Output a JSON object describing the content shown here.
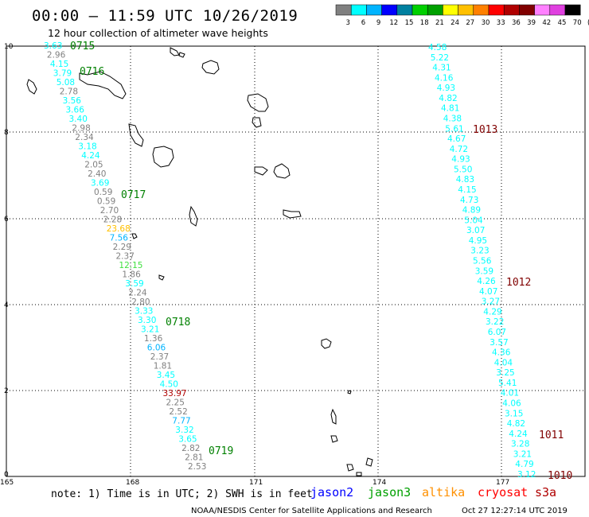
{
  "header": {
    "title": "00:00 – 11:59 UTC 10/26/2019",
    "subtitle": "12 hour collection of altimeter wave heights"
  },
  "colorbar": {
    "colors": [
      "#808080",
      "#00ffff",
      "#00b4ff",
      "#0000ff",
      "#0080a0",
      "#00d000",
      "#00a000",
      "#ffff00",
      "#ffc000",
      "#ff8000",
      "#ff0000",
      "#b00000",
      "#800000",
      "#ff80ff",
      "#e040e0",
      "#000000"
    ],
    "labels": [
      "3",
      "6",
      "9",
      "12",
      "15",
      "18",
      "21",
      "24",
      "27",
      "30",
      "33",
      "36",
      "39",
      "42",
      "45",
      "70",
      "(ft)"
    ]
  },
  "axes": {
    "x_ticks": [
      "165",
      "168",
      "171",
      "174",
      "177"
    ],
    "y_ticks": [
      "0",
      "2",
      "4",
      "6",
      "8",
      "10"
    ]
  },
  "track_left": [
    {
      "t": "3.63",
      "c": "#00ffff"
    },
    {
      "t": "2.96",
      "c": "#808080"
    },
    {
      "t": "4.15",
      "c": "#00ffff"
    },
    {
      "t": "3.79",
      "c": "#00ffff"
    },
    {
      "t": "5.08",
      "c": "#00ffff"
    },
    {
      "t": "2.78",
      "c": "#808080"
    },
    {
      "t": "3.56",
      "c": "#00ffff"
    },
    {
      "t": "3.66",
      "c": "#00ffff"
    },
    {
      "t": "3.40",
      "c": "#00ffff"
    },
    {
      "t": "2.98",
      "c": "#808080"
    },
    {
      "t": "2.34",
      "c": "#808080"
    },
    {
      "t": "3.18",
      "c": "#00ffff"
    },
    {
      "t": "4.24",
      "c": "#00ffff"
    },
    {
      "t": "2.05",
      "c": "#808080"
    },
    {
      "t": "2.40",
      "c": "#808080"
    },
    {
      "t": "3.69",
      "c": "#00ffff"
    },
    {
      "t": "0.59",
      "c": "#808080"
    },
    {
      "t": "0.59",
      "c": "#808080"
    },
    {
      "t": "2.70",
      "c": "#808080"
    },
    {
      "t": "2.28",
      "c": "#808080"
    },
    {
      "t": "23.68",
      "c": "#ffc000"
    },
    {
      "t": "7.56",
      "c": "#00b4ff"
    },
    {
      "t": "2.29",
      "c": "#808080"
    },
    {
      "t": "2.37",
      "c": "#808080"
    },
    {
      "t": "12.15",
      "c": "#40e040"
    },
    {
      "t": "1.86",
      "c": "#808080"
    },
    {
      "t": "3.59",
      "c": "#00ffff"
    },
    {
      "t": "2.24",
      "c": "#808080"
    },
    {
      "t": "2.80",
      "c": "#808080"
    },
    {
      "t": "3.33",
      "c": "#00ffff"
    },
    {
      "t": "3.30",
      "c": "#00ffff"
    },
    {
      "t": "3.21",
      "c": "#00ffff"
    },
    {
      "t": "1.36",
      "c": "#808080"
    },
    {
      "t": "6.06",
      "c": "#00b4ff"
    },
    {
      "t": "2.37",
      "c": "#808080"
    },
    {
      "t": "1.81",
      "c": "#808080"
    },
    {
      "t": "3.45",
      "c": "#00ffff"
    },
    {
      "t": "4.50",
      "c": "#00ffff"
    },
    {
      "t": "33.97",
      "c": "#b00000"
    },
    {
      "t": "2.25",
      "c": "#808080"
    },
    {
      "t": "2.52",
      "c": "#808080"
    },
    {
      "t": "7.77",
      "c": "#00b4ff"
    },
    {
      "t": "3.32",
      "c": "#00ffff"
    },
    {
      "t": "3.65",
      "c": "#00ffff"
    },
    {
      "t": "2.82",
      "c": "#808080"
    },
    {
      "t": "2.81",
      "c": "#808080"
    },
    {
      "t": "2.53",
      "c": "#808080"
    }
  ],
  "track_left_times": [
    "0715",
    "0716",
    "0717",
    "0718",
    "0719"
  ],
  "track_right": [
    {
      "t": "4.58",
      "c": "#00ffff"
    },
    {
      "t": "5.22",
      "c": "#00ffff"
    },
    {
      "t": "4.31",
      "c": "#00ffff"
    },
    {
      "t": "4.16",
      "c": "#00ffff"
    },
    {
      "t": "4.93",
      "c": "#00ffff"
    },
    {
      "t": "4.82",
      "c": "#00ffff"
    },
    {
      "t": "4.81",
      "c": "#00ffff"
    },
    {
      "t": "4.38",
      "c": "#00ffff"
    },
    {
      "t": "5.61",
      "c": "#00ffff"
    },
    {
      "t": "4.67",
      "c": "#00ffff"
    },
    {
      "t": "4.72",
      "c": "#00ffff"
    },
    {
      "t": "4.93",
      "c": "#00ffff"
    },
    {
      "t": "5.50",
      "c": "#00ffff"
    },
    {
      "t": "4.83",
      "c": "#00ffff"
    },
    {
      "t": "4.15",
      "c": "#00ffff"
    },
    {
      "t": "4.73",
      "c": "#00ffff"
    },
    {
      "t": "4.89",
      "c": "#00ffff"
    },
    {
      "t": "5.04",
      "c": "#00ffff"
    },
    {
      "t": "3.07",
      "c": "#00ffff"
    },
    {
      "t": "4.95",
      "c": "#00ffff"
    },
    {
      "t": "3.23",
      "c": "#00ffff"
    },
    {
      "t": "5.56",
      "c": "#00ffff"
    },
    {
      "t": "3.59",
      "c": "#00ffff"
    },
    {
      "t": "4.26",
      "c": "#00ffff"
    },
    {
      "t": "4.07",
      "c": "#00ffff"
    },
    {
      "t": "3.27",
      "c": "#00ffff"
    },
    {
      "t": "4.29",
      "c": "#00ffff"
    },
    {
      "t": "3.22",
      "c": "#00ffff"
    },
    {
      "t": "6.07",
      "c": "#00ffff"
    },
    {
      "t": "3.57",
      "c": "#00ffff"
    },
    {
      "t": "4.36",
      "c": "#00ffff"
    },
    {
      "t": "4.04",
      "c": "#00ffff"
    },
    {
      "t": "3.25",
      "c": "#00ffff"
    },
    {
      "t": "5.41",
      "c": "#00ffff"
    },
    {
      "t": "4.01",
      "c": "#00ffff"
    },
    {
      "t": "4.06",
      "c": "#00ffff"
    },
    {
      "t": "3.15",
      "c": "#00ffff"
    },
    {
      "t": "4.82",
      "c": "#00ffff"
    },
    {
      "t": "4.24",
      "c": "#00ffff"
    },
    {
      "t": "3.28",
      "c": "#00ffff"
    },
    {
      "t": "3.21",
      "c": "#00ffff"
    },
    {
      "t": "4.79",
      "c": "#00ffff"
    },
    {
      "t": "3.12",
      "c": "#00ffff"
    }
  ],
  "track_right_times": [
    "1013",
    "1012",
    "1011",
    "1010"
  ],
  "footer": {
    "note": "note: 1) Time is in UTC; 2) SWH is in feet",
    "satellites": [
      {
        "name": "jason2",
        "color": "#0000ff"
      },
      {
        "name": "jason3",
        "color": "#00a000"
      },
      {
        "name": "altika",
        "color": "#ff9000"
      },
      {
        "name": "cryosat",
        "color": "#ff0000"
      },
      {
        "name": "s3a",
        "color": "#b00000"
      }
    ],
    "credit": "NOAA/NESDIS Center for Satellite Applications and Research",
    "timestamp": "Oct 27 12:27:14 UTC 2019"
  },
  "colors": {
    "left_time": "#008000",
    "right_time": "#800000"
  }
}
